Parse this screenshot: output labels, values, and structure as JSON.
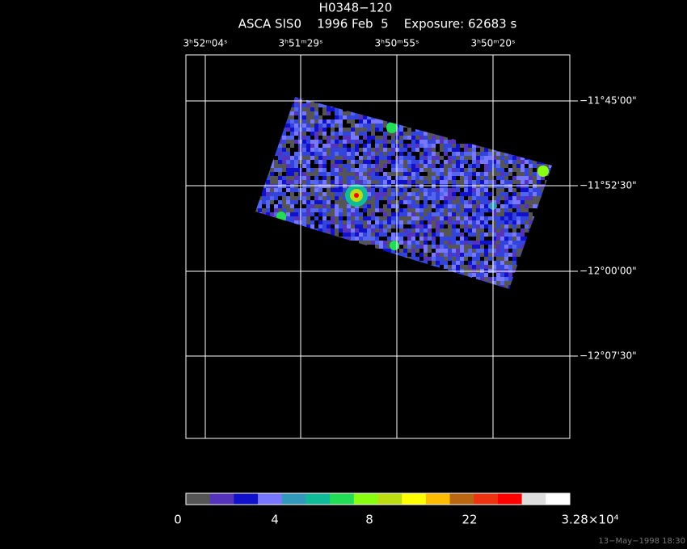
{
  "header": {
    "title": "H0348−120",
    "subtitle": "ASCA SIS0    1996 Feb  5    Exposure: 62683 s"
  },
  "ra_labels": [
    "3ʰ52ᵐ04ˢ",
    "3ʰ51ᵐ29ˢ",
    "3ʰ50ᵐ55ˢ",
    "3ʰ50ᵐ20ˢ"
  ],
  "dec_labels": [
    "−11°45'00\"",
    "−11°52'30\"",
    "−12°00'00\"",
    "−12°07'30\""
  ],
  "colorbar": {
    "colors": [
      "#555555",
      "#5533bb",
      "#1111cc",
      "#7777ff",
      "#3399bb",
      "#11bb99",
      "#22dd55",
      "#88ff11",
      "#bbdd11",
      "#ffff00",
      "#ffbb00",
      "#bb6611",
      "#ee3311",
      "#ff0000",
      "#dddddd",
      "#ffffff"
    ],
    "labels": [
      "0",
      "4",
      "8",
      "22",
      "3.28×10⁴"
    ]
  },
  "timestamp": "13−May−1998 18:30"
}
